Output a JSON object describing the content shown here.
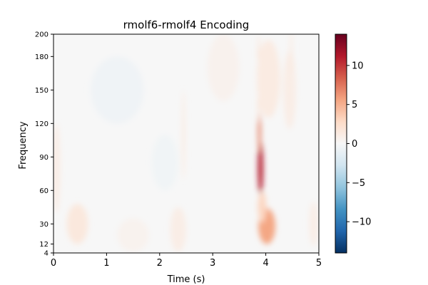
{
  "chart_data": {
    "type": "heatmap",
    "title": "rmolf6-rmolf4 Encoding",
    "xlabel": "Time (s)",
    "ylabel": "Frequency",
    "xlim": [
      0,
      5
    ],
    "ylim": [
      4,
      200
    ],
    "x_ticks": [
      {
        "value": 0,
        "label": "0"
      },
      {
        "value": 1,
        "label": "1"
      },
      {
        "value": 2,
        "label": "2"
      },
      {
        "value": 3,
        "label": "3"
      },
      {
        "value": 4,
        "label": "4"
      },
      {
        "value": 5,
        "label": "5"
      }
    ],
    "y_ticks": [
      {
        "value": 4,
        "label": "4"
      },
      {
        "value": 12,
        "label": "12"
      },
      {
        "value": 30,
        "label": "30"
      },
      {
        "value": 60,
        "label": "60"
      },
      {
        "value": 90,
        "label": "90"
      },
      {
        "value": 120,
        "label": "120"
      },
      {
        "value": 150,
        "label": "150"
      },
      {
        "value": 180,
        "label": "180"
      },
      {
        "value": 200,
        "label": "200"
      }
    ],
    "colorbar": {
      "colormap": "RdBu_r",
      "vmin": -14,
      "vmax": 14,
      "ticks": [
        {
          "value": 10,
          "label": "10"
        },
        {
          "value": 5,
          "label": "5"
        },
        {
          "value": 0,
          "label": "0"
        },
        {
          "value": -5,
          "label": "−5"
        },
        {
          "value": -10,
          "label": "−10"
        }
      ]
    },
    "features": [
      {
        "time": 3.9,
        "freq": 80,
        "dt": 0.05,
        "df": 24,
        "value": 11
      },
      {
        "time": 3.88,
        "freq": 112,
        "dt": 0.03,
        "df": 18,
        "value": 7
      },
      {
        "time": 3.87,
        "freq": 160,
        "dt": 0.02,
        "df": 40,
        "value": 2.5
      },
      {
        "time": 4.02,
        "freq": 28,
        "dt": 0.16,
        "df": 16,
        "value": 5.5
      },
      {
        "time": 3.93,
        "freq": 45,
        "dt": 0.08,
        "df": 14,
        "value": 3
      },
      {
        "time": 4.05,
        "freq": 160,
        "dt": 0.22,
        "df": 35,
        "value": 1.2
      },
      {
        "time": 4.45,
        "freq": 150,
        "dt": 0.12,
        "df": 35,
        "value": 1
      },
      {
        "time": 4.48,
        "freq": 185,
        "dt": 0.02,
        "df": 20,
        "value": 1.5
      },
      {
        "time": 0.45,
        "freq": 30,
        "dt": 0.2,
        "df": 18,
        "value": 1.5
      },
      {
        "time": 2.35,
        "freq": 25,
        "dt": 0.15,
        "df": 20,
        "value": 1
      },
      {
        "time": 2.45,
        "freq": 110,
        "dt": 0.03,
        "df": 40,
        "value": 1.2
      },
      {
        "time": 0.05,
        "freq": 80,
        "dt": 0.08,
        "df": 40,
        "value": 1
      },
      {
        "time": 4.9,
        "freq": 30,
        "dt": 0.08,
        "df": 20,
        "value": 1
      },
      {
        "time": 1.2,
        "freq": 150,
        "dt": 0.5,
        "df": 30,
        "value": -0.6
      },
      {
        "time": 2.1,
        "freq": 85,
        "dt": 0.25,
        "df": 25,
        "value": -0.5
      },
      {
        "time": 3.2,
        "freq": 170,
        "dt": 0.3,
        "df": 30,
        "value": 0.6
      },
      {
        "time": 1.5,
        "freq": 20,
        "dt": 0.3,
        "df": 15,
        "value": 0.5
      }
    ]
  }
}
